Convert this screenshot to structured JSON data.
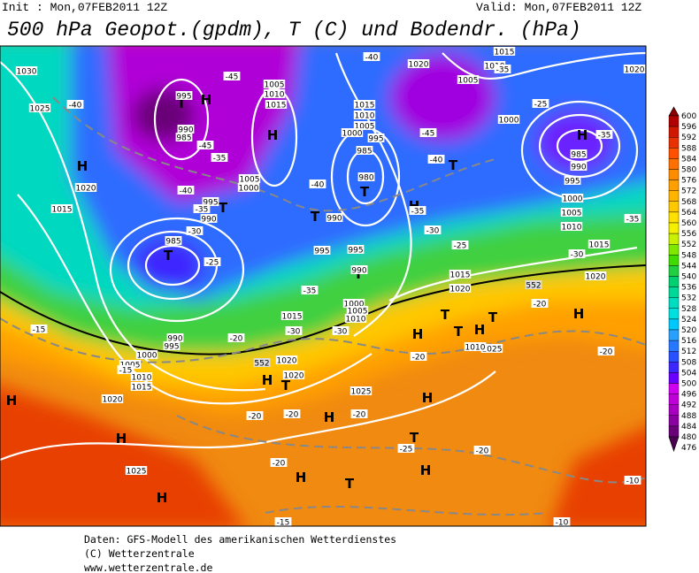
{
  "header": {
    "init": "Init : Mon,07FEB2011 12Z",
    "valid": "Valid: Mon,07FEB2011 12Z",
    "title": "500 hPa Geopot.(gpdm), T (C) und Bodendr. (hPa)"
  },
  "colorbar": {
    "levels": [
      600,
      596,
      592,
      588,
      584,
      580,
      576,
      572,
      568,
      564,
      560,
      556,
      552,
      548,
      544,
      540,
      536,
      532,
      528,
      524,
      520,
      516,
      512,
      508,
      504,
      500,
      496,
      492,
      488,
      484,
      480,
      476
    ],
    "colors": [
      "#8c0000",
      "#b00000",
      "#d01800",
      "#e83000",
      "#ff5000",
      "#ff7000",
      "#ff8c00",
      "#ffa000",
      "#ffb400",
      "#ffc800",
      "#ffe000",
      "#f4f000",
      "#c8f000",
      "#80e800",
      "#40dc00",
      "#20d040",
      "#00d070",
      "#00d898",
      "#00dcc0",
      "#00e0e0",
      "#00c8ff",
      "#28a0ff",
      "#2878ff",
      "#2850ff",
      "#3c28ff",
      "#6a00ff",
      "#d000f0",
      "#c000d8",
      "#a800c0",
      "#8b00a0",
      "#6a0078",
      "#4b0052"
    ]
  },
  "map": {
    "pressure_centers": [
      "T",
      "H",
      "H",
      "H",
      "T",
      "T",
      "T",
      "T",
      "T",
      "H",
      "T",
      "H",
      "T",
      "T",
      "H",
      "H",
      "T",
      "H",
      "T",
      "H",
      "H",
      "H",
      "H",
      "H",
      "H",
      "T",
      "H",
      "T",
      "H"
    ],
    "isobar_labels": [
      "1030",
      "1025",
      "1020",
      "1015",
      "995",
      "990",
      "985",
      "1005",
      "1010",
      "1015",
      "1015",
      "1010",
      "1005",
      "1000",
      "995",
      "985",
      "980",
      "990",
      "995",
      "995",
      "990",
      "1000",
      "1005",
      "1010",
      "1015",
      "985",
      "990",
      "995",
      "1000",
      "1005",
      "1010",
      "1015",
      "1020",
      "1020",
      "1020",
      "1025",
      "1025",
      "1015",
      "1020",
      "1015",
      "1020",
      "1000",
      "995",
      "1000",
      "1005",
      "1010",
      "985",
      "990",
      "1015",
      "1010",
      "1005",
      "1020",
      "1020",
      "995",
      "990",
      "1005",
      "1000",
      "1025",
      "1010"
    ],
    "temperature_labels": [
      "-45",
      "-40",
      "-45",
      "-35",
      "-40",
      "-35",
      "-30",
      "-25",
      "-35",
      "-30",
      "-20",
      "-15",
      "-15",
      "-20",
      "-20",
      "-20",
      "-20",
      "-15",
      "-20",
      "-25",
      "-20",
      "-20",
      "-20",
      "-10",
      "-10",
      "-35",
      "-40",
      "-45",
      "-40",
      "-35",
      "-30",
      "-25",
      "-30",
      "-35",
      "-35",
      "-25",
      "-40",
      "-30"
    ],
    "geopotential_labels": [
      "552",
      "552"
    ]
  },
  "footer": {
    "line1": "Daten: GFS-Modell des amerikanischen Wetterdienstes",
    "line2": "(C) Wetterzentrale",
    "line3": "www.wetterzentrale.de"
  }
}
